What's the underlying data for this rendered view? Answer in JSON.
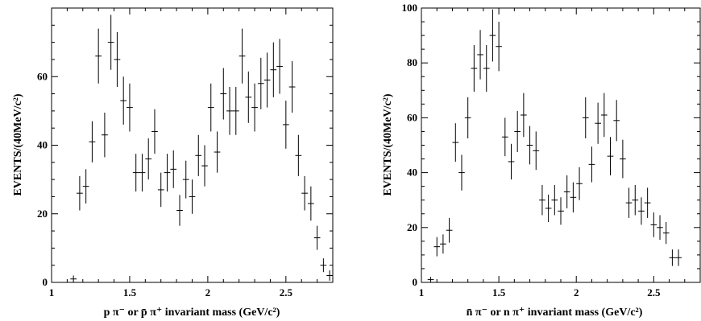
{
  "chart_data": [
    {
      "type": "scatter",
      "style": "error-bar histogram",
      "xlabel": "p π⁻ or p̄ π⁺ invariant mass (GeV/c²)",
      "ylabel": "EVENTS/(40MeV/c²)",
      "xlim": [
        1.0,
        2.8
      ],
      "ylim": [
        0,
        80
      ],
      "xticks": [
        1,
        1.5,
        2,
        2.5
      ],
      "yticks": [
        0,
        20,
        40,
        60
      ],
      "bin_width": 0.04,
      "grid": false,
      "x": [
        1.14,
        1.18,
        1.22,
        1.26,
        1.3,
        1.34,
        1.38,
        1.42,
        1.46,
        1.5,
        1.54,
        1.58,
        1.62,
        1.66,
        1.7,
        1.74,
        1.78,
        1.82,
        1.86,
        1.9,
        1.94,
        1.98,
        2.02,
        2.06,
        2.1,
        2.14,
        2.18,
        2.22,
        2.26,
        2.3,
        2.34,
        2.38,
        2.42,
        2.46,
        2.5,
        2.54,
        2.58,
        2.62,
        2.66,
        2.7,
        2.74,
        2.78
      ],
      "y": [
        1,
        26,
        28,
        41,
        66,
        43,
        70,
        65,
        53,
        51,
        32,
        32,
        36,
        44,
        27,
        32,
        33,
        21,
        30,
        25,
        37,
        34,
        51,
        38,
        55,
        50,
        50,
        66,
        54,
        51,
        58,
        59,
        62,
        63,
        46,
        57,
        37,
        26,
        23,
        13,
        5,
        2
      ],
      "yerr": [
        1,
        5,
        5,
        6,
        8,
        6.5,
        8,
        8,
        7,
        7,
        5.5,
        5.5,
        6,
        6.5,
        5,
        5.5,
        5.5,
        4.5,
        5.5,
        5,
        6,
        6,
        7,
        6,
        7.5,
        7,
        7,
        8,
        7.5,
        7,
        7.5,
        8,
        8,
        8,
        7,
        7.5,
        6,
        5,
        5,
        3.5,
        2,
        1.5
      ]
    },
    {
      "type": "scatter",
      "style": "error-bar histogram",
      "xlabel": "n̄ π⁻ or n π⁺ invariant mass (GeV/c²)",
      "ylabel": "EVENTS/(40MeV/c²)",
      "xlim": [
        1.0,
        2.8
      ],
      "ylim": [
        0,
        100
      ],
      "xticks": [
        1,
        1.5,
        2,
        2.5
      ],
      "yticks": [
        0,
        20,
        40,
        60,
        80,
        100
      ],
      "bin_width": 0.04,
      "grid": false,
      "x": [
        1.06,
        1.1,
        1.14,
        1.18,
        1.22,
        1.26,
        1.3,
        1.34,
        1.38,
        1.42,
        1.46,
        1.5,
        1.54,
        1.58,
        1.62,
        1.66,
        1.7,
        1.74,
        1.78,
        1.82,
        1.86,
        1.9,
        1.94,
        1.98,
        2.02,
        2.06,
        2.1,
        2.14,
        2.18,
        2.22,
        2.26,
        2.3,
        2.34,
        2.38,
        2.42,
        2.46,
        2.5,
        2.54,
        2.58,
        2.62,
        2.66
      ],
      "y": [
        1,
        13,
        14,
        19,
        51,
        40,
        60,
        78,
        83,
        78,
        90,
        86,
        53,
        44,
        55,
        61,
        50,
        48,
        30,
        27,
        30,
        26,
        33,
        31,
        36,
        60,
        43,
        58,
        61,
        46,
        59,
        45,
        29,
        30,
        26,
        29,
        21,
        20,
        18,
        9,
        9
      ],
      "yerr": [
        1,
        3.5,
        3.5,
        4.5,
        7,
        6.5,
        7.5,
        8.5,
        9,
        8.5,
        9.5,
        9,
        7,
        6.5,
        7.5,
        8,
        7,
        7,
        5.5,
        5,
        5.5,
        5,
        6,
        5.5,
        6,
        7.5,
        6.5,
        7.5,
        8,
        7,
        7.5,
        7,
        5.5,
        5.5,
        5,
        5.5,
        4.5,
        4.5,
        4,
        3,
        3
      ]
    }
  ]
}
